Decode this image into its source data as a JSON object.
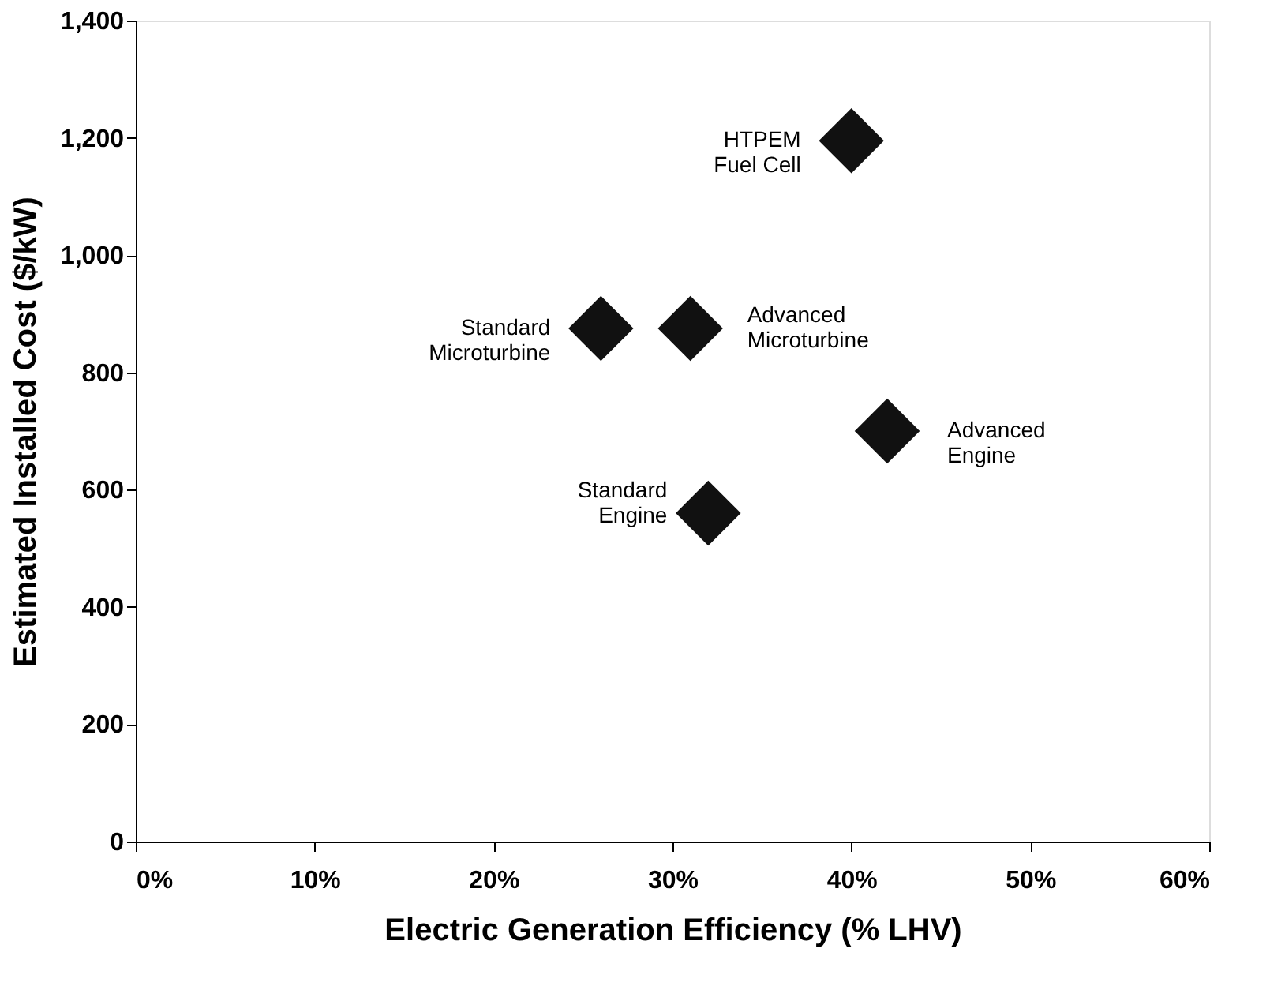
{
  "chart_data": {
    "type": "scatter",
    "xlabel": "Electric Generation Efficiency (% LHV)",
    "ylabel": "Estimated Installed Cost ($/kW)",
    "x": [
      40,
      26,
      31,
      42,
      32
    ],
    "series": [
      {
        "color": "#111111",
        "values": [
          1195,
          875,
          875,
          700,
          560
        ]
      }
    ],
    "marker": "diamond",
    "grid": false,
    "xlim": [
      0,
      60
    ],
    "xticks": [
      {
        "value": 0,
        "label": "0%"
      },
      {
        "value": 10,
        "label": "10%"
      },
      {
        "value": 20,
        "label": "20%"
      },
      {
        "value": 30,
        "label": "30%"
      },
      {
        "value": 40,
        "label": "40%"
      },
      {
        "value": 50,
        "label": "50%"
      },
      {
        "value": 60,
        "label": "60%"
      }
    ],
    "ylim": [
      0,
      1400
    ],
    "yticks": [
      0,
      200,
      400,
      600,
      800,
      {
        "value": 1000,
        "label": "1,000"
      },
      {
        "value": 1200,
        "label": "1,200"
      },
      {
        "value": 1400,
        "label": "1,400"
      }
    ],
    "annotations": [
      {
        "text": "HTPEM\nFuel Cell",
        "x": 40,
        "y": 1195
      },
      {
        "text": "Standard\nMicroturbine",
        "x": 26,
        "y": 875
      },
      {
        "text": "Advanced\nMicroturbine",
        "x": 31,
        "y": 875
      },
      {
        "text": "Advanced\nEngine",
        "x": 42,
        "y": 700
      },
      {
        "text": "Standard\nEngine",
        "x": 32,
        "y": 560
      }
    ]
  }
}
